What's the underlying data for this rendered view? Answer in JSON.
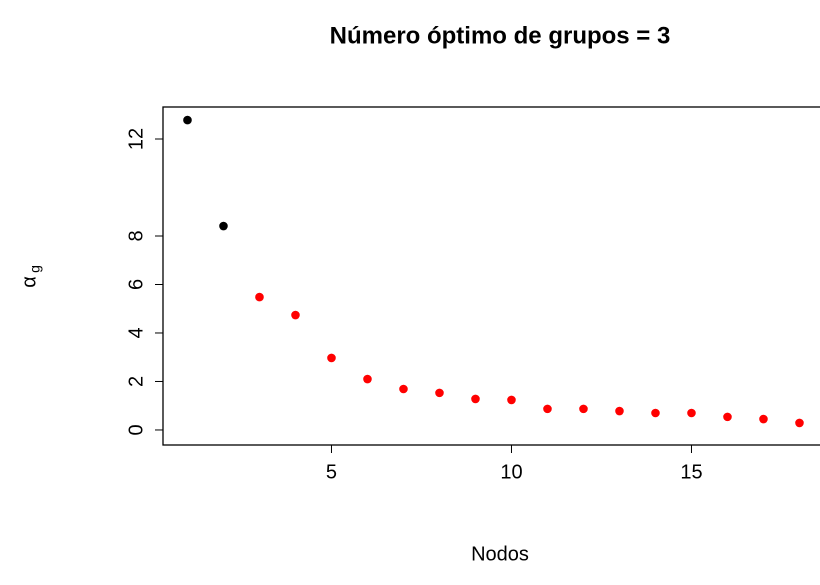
{
  "chart_data": {
    "type": "scatter",
    "title": "Número óptimo de grupos = 3",
    "xlabel": "Nodos",
    "ylabel": "α",
    "ylabel_subscript": "g",
    "x": [
      1,
      2,
      3,
      4,
      5,
      6,
      7,
      8,
      9,
      10,
      11,
      12,
      13,
      14,
      15,
      16,
      17,
      18
    ],
    "values": [
      12.78,
      8.41,
      5.48,
      4.74,
      2.97,
      2.1,
      1.69,
      1.53,
      1.28,
      1.24,
      0.87,
      0.87,
      0.78,
      0.7,
      0.7,
      0.54,
      0.45,
      0.29
    ],
    "colors": [
      "#000000",
      "#000000",
      "#ff0000",
      "#ff0000",
      "#ff0000",
      "#ff0000",
      "#ff0000",
      "#ff0000",
      "#ff0000",
      "#ff0000",
      "#ff0000",
      "#ff0000",
      "#ff0000",
      "#ff0000",
      "#ff0000",
      "#ff0000",
      "#ff0000",
      "#ff0000"
    ],
    "xlim": [
      0.32,
      18.68
    ],
    "ylim": [
      -0.62,
      13.32
    ],
    "xticks": [
      5,
      10,
      15
    ],
    "yticks": [
      0,
      2,
      4,
      6,
      8,
      12
    ]
  }
}
